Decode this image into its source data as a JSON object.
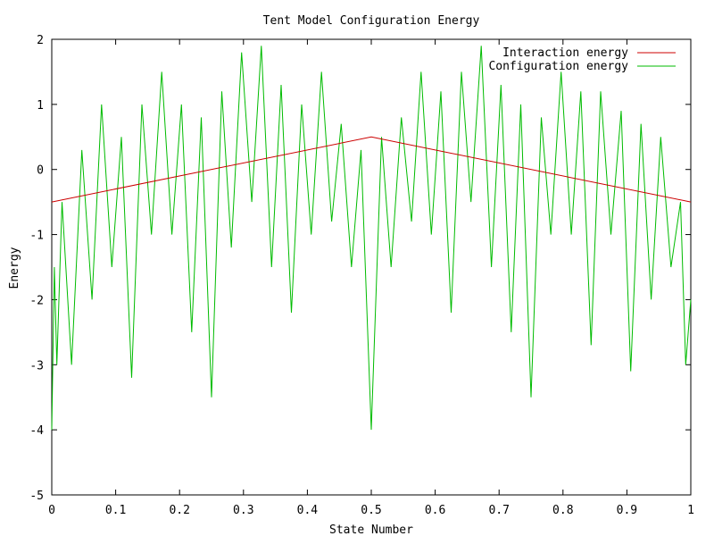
{
  "chart_data": {
    "type": "line",
    "title": "Tent Model Configuration Energy",
    "xlabel": "State Number",
    "ylabel": "Energy",
    "xlim": [
      0,
      1
    ],
    "ylim": [
      -5,
      2
    ],
    "x_ticks": [
      "0",
      "0.1",
      "0.2",
      "0.3",
      "0.4",
      "0.5",
      "0.6",
      "0.7",
      "0.8",
      "0.9",
      "1"
    ],
    "x_tick_values": [
      0,
      0.1,
      0.2,
      0.3,
      0.4,
      0.5,
      0.6,
      0.7,
      0.8,
      0.9,
      1
    ],
    "y_ticks": [
      "-5",
      "-4",
      "-3",
      "-2",
      "-1",
      "0",
      "1",
      "2"
    ],
    "y_tick_values": [
      -5,
      -4,
      -3,
      -2,
      -1,
      0,
      1,
      2
    ],
    "grid": false,
    "legend_position": "top-right",
    "series": [
      {
        "name": "Interaction energy",
        "color": "#cc0000",
        "x": [
          0,
          0.5,
          1
        ],
        "y": [
          -0.5,
          0.5,
          -0.5
        ]
      },
      {
        "name": "Configuration energy",
        "color": "#00bb00",
        "x": [
          0,
          0.004,
          0.008,
          0.016,
          0.031,
          0.047,
          0.063,
          0.078,
          0.094,
          0.109,
          0.125,
          0.141,
          0.156,
          0.172,
          0.188,
          0.203,
          0.219,
          0.234,
          0.25,
          0.266,
          0.281,
          0.297,
          0.313,
          0.328,
          0.344,
          0.359,
          0.375,
          0.391,
          0.406,
          0.422,
          0.438,
          0.453,
          0.469,
          0.484,
          0.5,
          0.516,
          0.531,
          0.547,
          0.563,
          0.578,
          0.594,
          0.609,
          0.625,
          0.641,
          0.656,
          0.672,
          0.688,
          0.703,
          0.719,
          0.734,
          0.75,
          0.766,
          0.781,
          0.797,
          0.813,
          0.828,
          0.844,
          0.859,
          0.875,
          0.891,
          0.906,
          0.922,
          0.938,
          0.953,
          0.969,
          0.984,
          0.992,
          1
        ],
        "y": [
          -4.0,
          -1.5,
          -3.0,
          -0.5,
          -3.0,
          0.3,
          -2.0,
          1.0,
          -1.5,
          0.5,
          -3.2,
          1.0,
          -1.0,
          1.5,
          -1.0,
          1.0,
          -2.5,
          0.8,
          -3.5,
          1.2,
          -1.2,
          1.8,
          -0.5,
          1.9,
          -1.5,
          1.3,
          -2.2,
          1.0,
          -1.0,
          1.5,
          -0.8,
          0.7,
          -1.5,
          0.3,
          -4.0,
          0.5,
          -1.5,
          0.8,
          -0.8,
          1.5,
          -1.0,
          1.2,
          -2.2,
          1.5,
          -0.5,
          1.9,
          -1.5,
          1.3,
          -2.5,
          1.0,
          -3.5,
          0.8,
          -1.0,
          1.5,
          -1.0,
          1.2,
          -2.7,
          1.2,
          -1.0,
          0.9,
          -3.1,
          0.7,
          -2.0,
          0.5,
          -1.5,
          -0.5,
          -3.0,
          -2.0
        ]
      }
    ]
  }
}
